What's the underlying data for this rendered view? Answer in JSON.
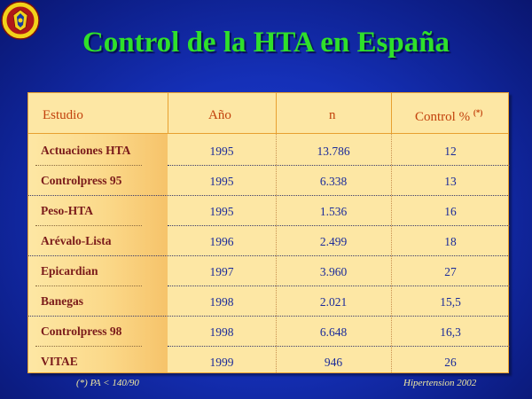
{
  "title": "Control de la HTA en España",
  "table": {
    "headers": {
      "estudio": "Estudio",
      "anio": "Año",
      "n": "n",
      "control": "Control %",
      "control_note": "(*)"
    },
    "rows": [
      {
        "estudio": "Actuaciones HTA",
        "anio": "1995",
        "n": "13.786",
        "control": "12"
      },
      {
        "estudio": "Controlpress 95",
        "anio": "1995",
        "n": "6.338",
        "control": "13"
      },
      {
        "estudio": "Peso-HTA",
        "anio": "1995",
        "n": "1.536",
        "control": "16"
      },
      {
        "estudio": "Arévalo-Lista",
        "anio": "1996",
        "n": "2.499",
        "control": "18"
      },
      {
        "estudio": "Epicardian",
        "anio": "1997",
        "n": "3.960",
        "control": "27"
      },
      {
        "estudio": "Banegas",
        "anio": "1998",
        "n": "2.021",
        "control": "15,5"
      },
      {
        "estudio": "Controlpress 98",
        "anio": "1998",
        "n": "6.648",
        "control": "16,3"
      },
      {
        "estudio": "VITAE",
        "anio": "1999",
        "n": "946",
        "control": "26"
      }
    ]
  },
  "footer": {
    "note": "(*) PA < 140/90",
    "source": "Hipertension 2002"
  },
  "colors": {
    "title": "#2fe02a",
    "header_text": "#c2410c",
    "study_text": "#7a1a1a",
    "value_text": "#1a2a9a",
    "table_bg": "#fde7a4"
  }
}
